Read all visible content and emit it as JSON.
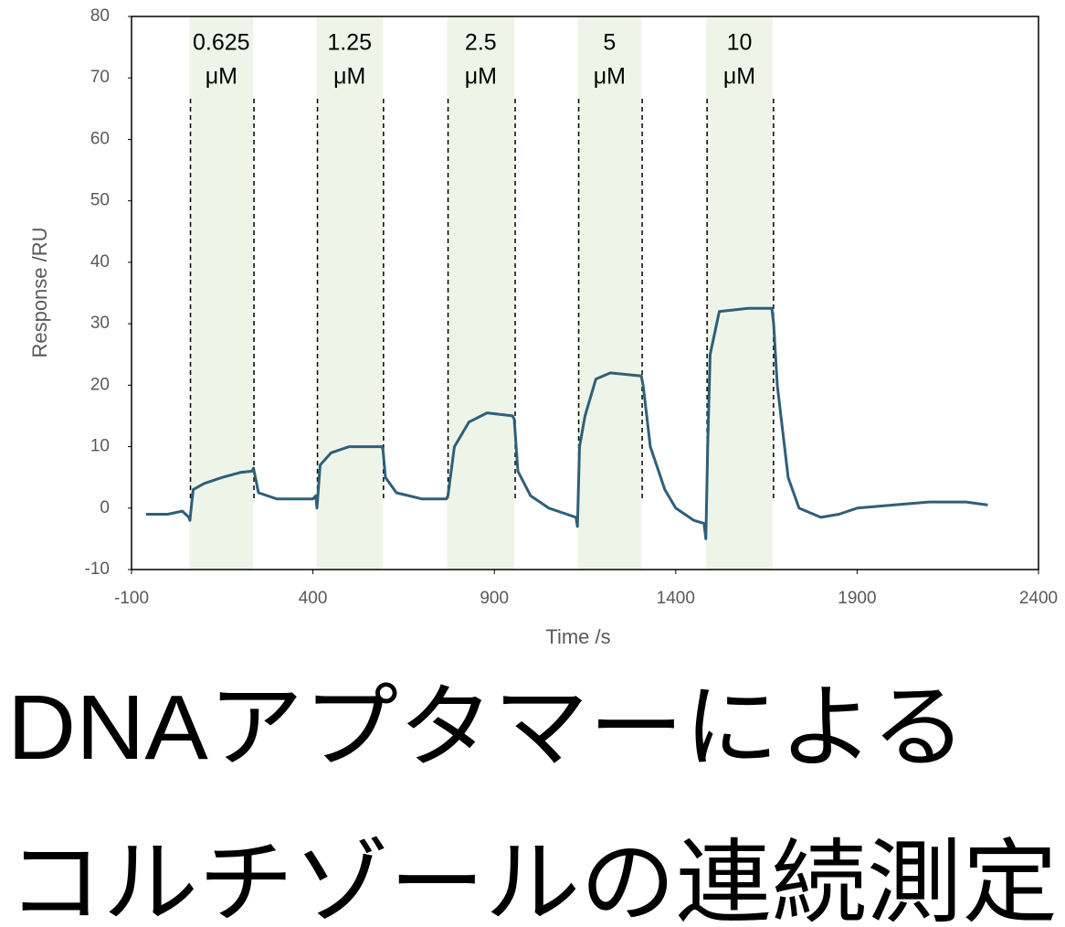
{
  "chart_data": {
    "type": "line",
    "x_label": "Time /s",
    "y_label": "Response /RU",
    "xlim": [
      -100,
      2400
    ],
    "xticks": [
      -100,
      400,
      900,
      1400,
      1900,
      2400
    ],
    "ylim": [
      -10,
      80
    ],
    "yticks": [
      -10,
      0,
      10,
      20,
      30,
      40,
      50,
      60,
      70,
      80
    ],
    "bands": [
      {
        "start": 60,
        "end": 235,
        "label": [
          "0.625",
          "μM"
        ]
      },
      {
        "start": 410,
        "end": 592,
        "label": [
          "1.25",
          "μM"
        ]
      },
      {
        "start": 770,
        "end": 955,
        "label": [
          "2.5",
          "μM"
        ]
      },
      {
        "start": 1130,
        "end": 1305,
        "label": [
          "5",
          "μM"
        ]
      },
      {
        "start": 1484,
        "end": 1667,
        "label": [
          "10",
          "μM"
        ]
      }
    ],
    "band_color": "#eef5e8",
    "series": [
      {
        "color": "#2f5f7a",
        "x": [
          -60,
          0,
          40,
          58,
          61,
          70,
          100,
          150,
          200,
          232,
          236,
          250,
          300,
          400,
          408,
          411,
          420,
          450,
          500,
          590,
          593,
          600,
          630,
          700,
          768,
          772,
          790,
          830,
          880,
          950,
          955,
          965,
          1000,
          1050,
          1100,
          1125,
          1129,
          1135,
          1150,
          1180,
          1220,
          1305,
          1310,
          1330,
          1370,
          1400,
          1450,
          1478,
          1483,
          1488,
          1495,
          1520,
          1600,
          1665,
          1670,
          1680,
          1710,
          1740,
          1800,
          1850,
          1900,
          2000,
          2100,
          2200,
          2260
        ],
        "values": [
          -1,
          -1,
          -0.5,
          -1.5,
          -2,
          3,
          4,
          5,
          5.8,
          6,
          6.5,
          2.5,
          1.5,
          1.5,
          2,
          0,
          7,
          9,
          10,
          10,
          9.5,
          5,
          2.5,
          1.5,
          1.5,
          2,
          10,
          14,
          15.5,
          15,
          14.5,
          6,
          2,
          0,
          -1,
          -1.5,
          -3,
          10,
          15,
          21,
          22,
          21.5,
          20,
          10,
          3,
          0,
          -2,
          -2.5,
          -5,
          10,
          25,
          32,
          32.5,
          32.5,
          30,
          20,
          5,
          0,
          -1.5,
          -1,
          0,
          0.5,
          1,
          1,
          0.5
        ]
      }
    ]
  },
  "caption": [
    "DNAアプタマーによる",
    "コルチゾールの連続測定"
  ]
}
